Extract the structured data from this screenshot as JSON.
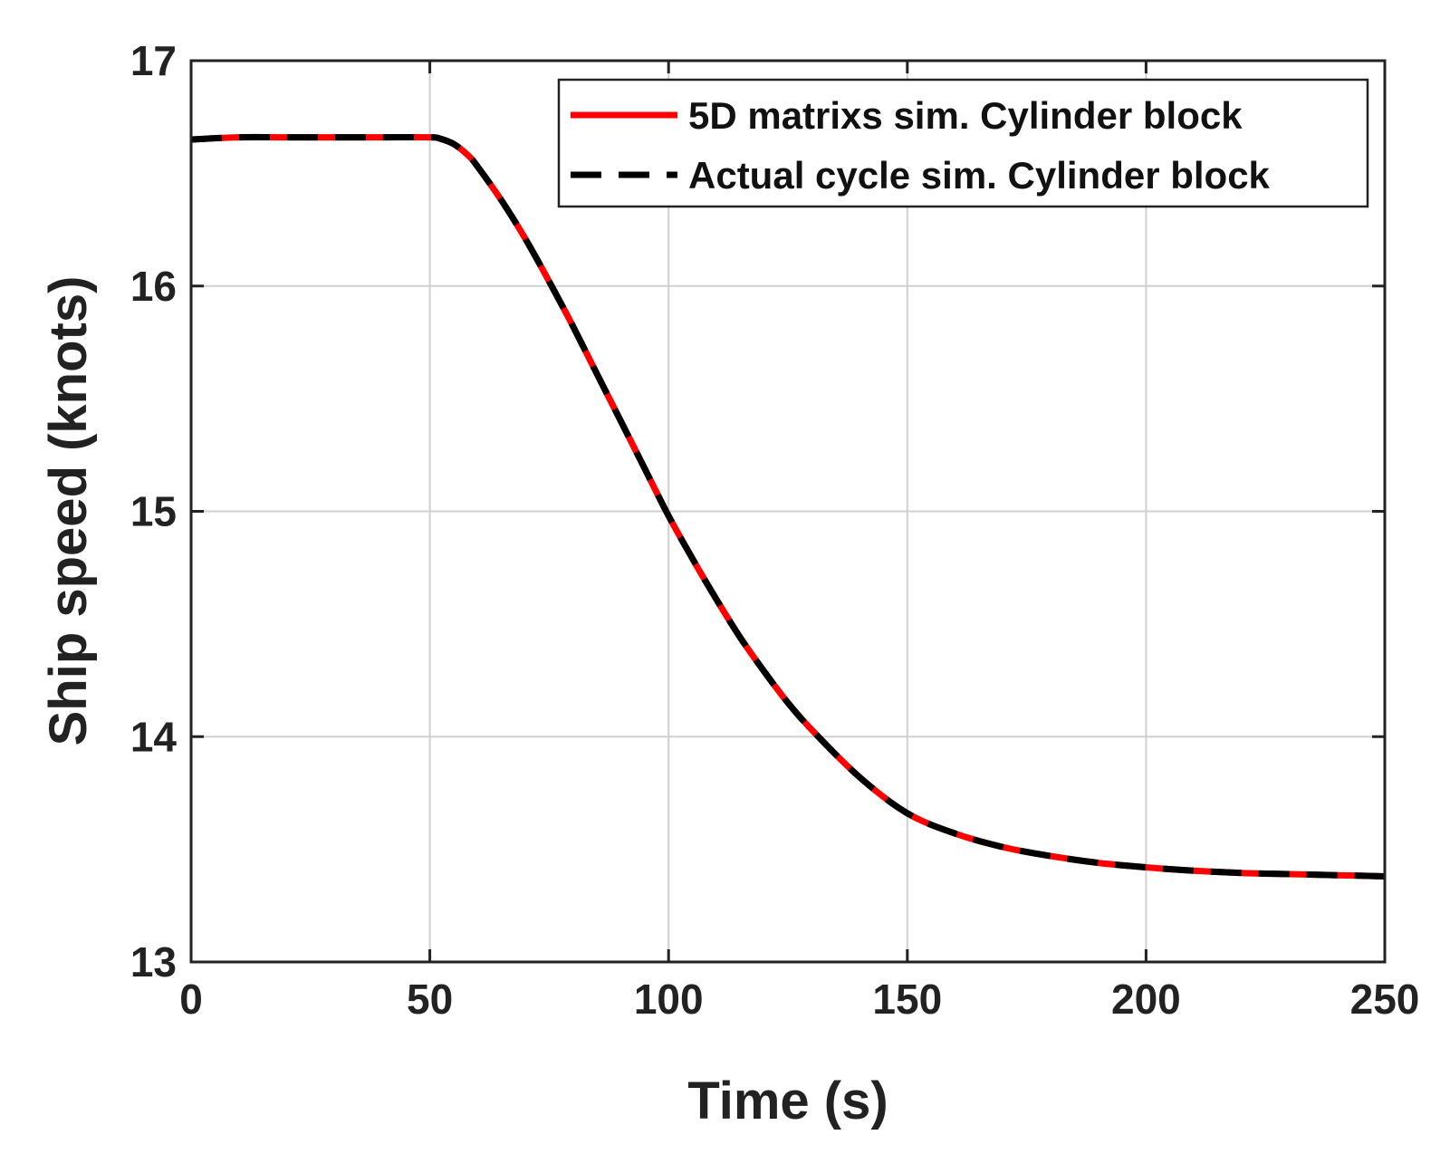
{
  "chart_data": {
    "type": "line",
    "title": "",
    "xlabel": "Time (s)",
    "ylabel": "Ship speed (knots)",
    "xlim": [
      0,
      250
    ],
    "ylim": [
      13,
      17
    ],
    "xticks": [
      0,
      50,
      100,
      150,
      200,
      250
    ],
    "yticks": [
      13,
      14,
      15,
      16,
      17
    ],
    "grid": true,
    "legend_position": "top-right",
    "colors": {
      "red": "#ff0000",
      "black": "#000000",
      "grid": "#d0d0d0",
      "axis": "#222222"
    },
    "x": [
      0,
      10,
      20,
      30,
      40,
      50,
      52,
      55,
      58,
      60,
      65,
      70,
      75,
      80,
      85,
      90,
      95,
      100,
      105,
      110,
      115,
      120,
      125,
      130,
      140,
      150,
      160,
      170,
      180,
      190,
      200,
      210,
      220,
      230,
      240,
      250
    ],
    "series": [
      {
        "name": "5D matrixs sim. Cylinder block",
        "style": "solid",
        "color": "#ff0000",
        "values": [
          16.65,
          16.66,
          16.66,
          16.66,
          16.66,
          16.66,
          16.655,
          16.63,
          16.58,
          16.53,
          16.38,
          16.21,
          16.02,
          15.82,
          15.61,
          15.4,
          15.19,
          14.98,
          14.79,
          14.61,
          14.44,
          14.29,
          14.15,
          14.03,
          13.82,
          13.66,
          13.57,
          13.51,
          13.47,
          13.44,
          13.42,
          13.405,
          13.395,
          13.39,
          13.385,
          13.38
        ]
      },
      {
        "name": "Actual cycle sim. Cylinder block",
        "style": "dashed",
        "color": "#000000",
        "values": [
          16.65,
          16.66,
          16.66,
          16.66,
          16.66,
          16.66,
          16.655,
          16.63,
          16.58,
          16.53,
          16.38,
          16.21,
          16.02,
          15.82,
          15.61,
          15.4,
          15.19,
          14.98,
          14.79,
          14.61,
          14.44,
          14.29,
          14.15,
          14.03,
          13.82,
          13.66,
          13.57,
          13.51,
          13.47,
          13.44,
          13.42,
          13.405,
          13.395,
          13.39,
          13.385,
          13.38
        ]
      }
    ]
  }
}
